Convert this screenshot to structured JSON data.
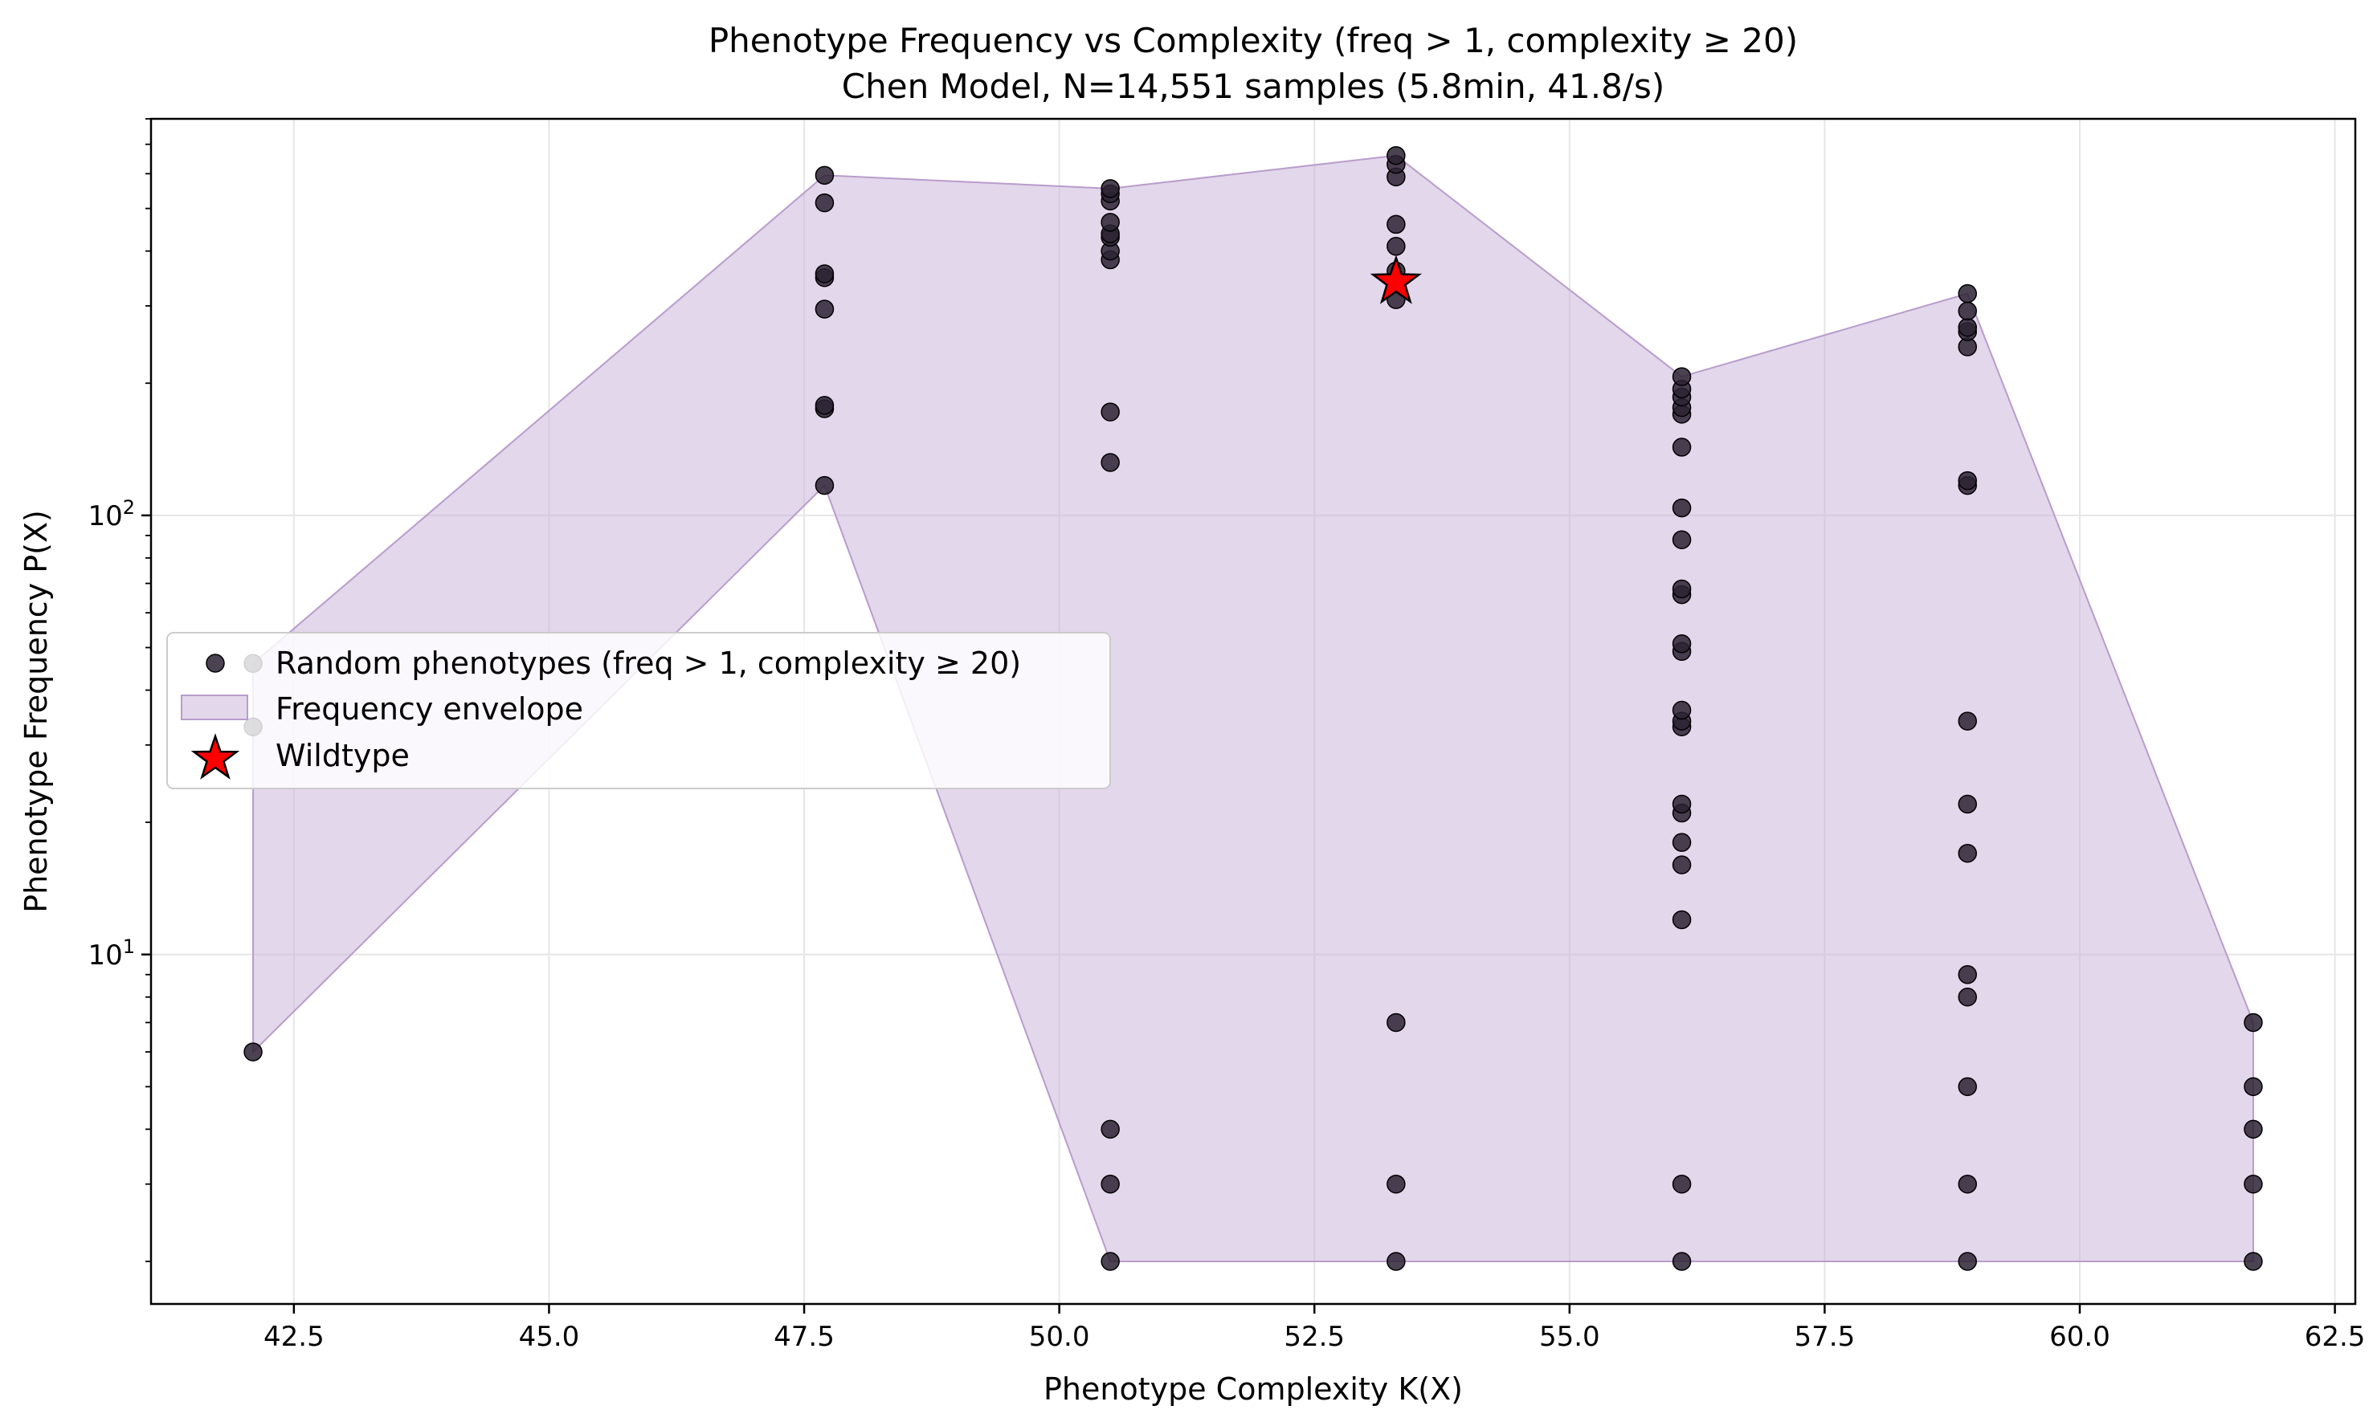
{
  "chart_data": {
    "type": "scatter",
    "title": "Phenotype Frequency vs Complexity (freq > 1, complexity ≥ 20)",
    "subtitle": "Chen Model, N=14,551 samples (5.8min, 41.8/s)",
    "xlabel": "Phenotype Complexity K(X)",
    "ylabel": "Phenotype Frequency P(X)",
    "xlim": [
      41.1,
      62.7
    ],
    "ylim": [
      1.6,
      800
    ],
    "yscale": "log",
    "grid": true,
    "legend_placement": "center-left",
    "x_ticks": [
      {
        "value": 42.5,
        "label": "42.5"
      },
      {
        "value": 45.0,
        "label": "45.0"
      },
      {
        "value": 47.5,
        "label": "47.5"
      },
      {
        "value": 50.0,
        "label": "50.0"
      },
      {
        "value": 52.5,
        "label": "52.5"
      },
      {
        "value": 55.0,
        "label": "55.0"
      },
      {
        "value": 57.5,
        "label": "57.5"
      },
      {
        "value": 60.0,
        "label": "60.0"
      },
      {
        "value": 62.5,
        "label": "62.5"
      }
    ],
    "y_ticks": [
      {
        "value": 10,
        "label": "10",
        "exp": "1"
      },
      {
        "value": 100,
        "label": "10",
        "exp": "2"
      }
    ],
    "colors": {
      "points": "#2b2233",
      "point_edge": "#000000",
      "envelope_fill": "#c8b0d8",
      "envelope_edge": "#b89ccc",
      "wildtype": "#ff0000",
      "grid": "#e6e6e6"
    },
    "series": [
      {
        "name": "Random phenotypes (freq > 1, complexity ≥ 20)",
        "kind": "scatter",
        "points": [
          [
            42.1,
            6
          ],
          [
            42.1,
            33
          ],
          [
            42.1,
            46
          ],
          [
            47.7,
            117
          ],
          [
            47.7,
            175
          ],
          [
            47.7,
            178
          ],
          [
            47.7,
            295
          ],
          [
            47.7,
            348
          ],
          [
            47.7,
            355
          ],
          [
            47.7,
            515
          ],
          [
            47.7,
            595
          ],
          [
            50.5,
            2
          ],
          [
            50.5,
            3
          ],
          [
            50.5,
            4
          ],
          [
            50.5,
            132
          ],
          [
            50.5,
            172
          ],
          [
            50.5,
            382
          ],
          [
            50.5,
            400
          ],
          [
            50.5,
            430
          ],
          [
            50.5,
            438
          ],
          [
            50.5,
            465
          ],
          [
            50.5,
            520
          ],
          [
            50.5,
            540
          ],
          [
            50.5,
            555
          ],
          [
            53.3,
            2
          ],
          [
            53.3,
            3
          ],
          [
            53.3,
            7
          ],
          [
            53.3,
            310
          ],
          [
            53.3,
            360
          ],
          [
            53.3,
            410
          ],
          [
            53.3,
            460
          ],
          [
            53.3,
            590
          ],
          [
            53.3,
            630
          ],
          [
            53.3,
            660
          ],
          [
            56.1,
            2
          ],
          [
            56.1,
            3
          ],
          [
            56.1,
            12
          ],
          [
            56.1,
            16
          ],
          [
            56.1,
            18
          ],
          [
            56.1,
            21
          ],
          [
            56.1,
            22
          ],
          [
            56.1,
            33
          ],
          [
            56.1,
            34
          ],
          [
            56.1,
            36
          ],
          [
            56.1,
            49
          ],
          [
            56.1,
            51
          ],
          [
            56.1,
            66
          ],
          [
            56.1,
            68
          ],
          [
            56.1,
            88
          ],
          [
            56.1,
            104
          ],
          [
            56.1,
            143
          ],
          [
            56.1,
            170
          ],
          [
            56.1,
            176
          ],
          [
            56.1,
            186
          ],
          [
            56.1,
            194
          ],
          [
            56.1,
            207
          ],
          [
            58.9,
            2
          ],
          [
            58.9,
            3
          ],
          [
            58.9,
            5
          ],
          [
            58.9,
            8
          ],
          [
            58.9,
            9
          ],
          [
            58.9,
            17
          ],
          [
            58.9,
            22
          ],
          [
            58.9,
            34
          ],
          [
            58.9,
            117
          ],
          [
            58.9,
            120
          ],
          [
            58.9,
            242
          ],
          [
            58.9,
            262
          ],
          [
            58.9,
            268
          ],
          [
            58.9,
            292
          ],
          [
            58.9,
            320
          ],
          [
            61.7,
            2
          ],
          [
            61.7,
            3
          ],
          [
            61.7,
            4
          ],
          [
            61.7,
            5
          ],
          [
            61.7,
            7
          ]
        ]
      },
      {
        "name": "Frequency envelope",
        "kind": "area",
        "x": [
          42.1,
          47.7,
          50.5,
          53.3,
          56.1,
          58.9,
          61.7
        ],
        "upper": [
          46,
          595,
          555,
          660,
          207,
          320,
          7
        ],
        "lower": [
          6,
          117,
          2,
          2,
          2,
          2,
          2
        ]
      },
      {
        "name": "Wildtype",
        "kind": "marker",
        "points": [
          [
            53.3,
            340
          ]
        ]
      }
    ]
  }
}
